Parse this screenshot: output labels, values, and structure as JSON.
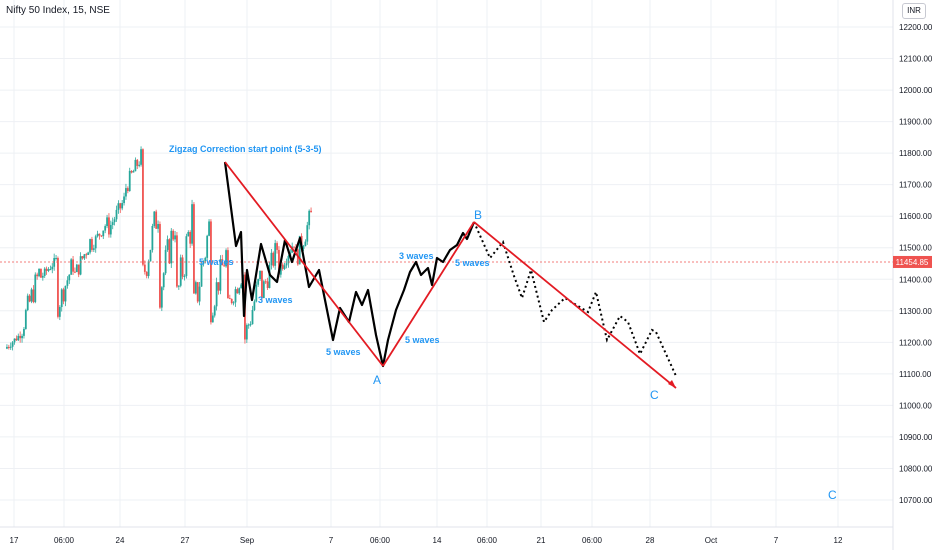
{
  "symbol_label": "Nifty 50 Index, 15, NSE",
  "currency": "INR",
  "colors": {
    "up": "#26a69a",
    "down": "#ef5350",
    "projection": "#e31b23",
    "wave": "#000000",
    "annotation": "#2196f3",
    "price_line": "#ef5350"
  },
  "chart_data": {
    "type": "candlestick",
    "title": "Nifty 50 Index, 15, NSE",
    "y_range": [
      10670,
      12260
    ],
    "y_ticks": [
      12200,
      12100,
      12000,
      11900,
      11800,
      11700,
      11600,
      11500,
      11400,
      11300,
      11200,
      11100,
      11000,
      10900,
      10800,
      10700
    ],
    "last_price": 11454.85,
    "last_price_label": "11454.85",
    "x_ticks": [
      "17",
      "06:00",
      "24",
      "27",
      "Sep",
      "7",
      "06:00",
      "14",
      "06:00",
      "21",
      "06:00",
      "28",
      "Oct",
      "7",
      "12"
    ],
    "candle_range": {
      "start_price": 11180,
      "points": [
        [
          11180,
          11230
        ],
        [
          11250,
          11420
        ],
        [
          11400,
          11460
        ],
        [
          11300,
          11450
        ],
        [
          11400,
          11520
        ],
        [
          11500,
          11580
        ],
        [
          11550,
          11650
        ],
        [
          11680,
          11790
        ],
        [
          11380,
          11620
        ],
        [
          11340,
          11580
        ],
        [
          11300,
          11600
        ],
        [
          11270,
          11560
        ],
        [
          11290,
          11480
        ],
        [
          11300,
          11420
        ],
        [
          11190,
          11400
        ],
        [
          11340,
          11500
        ],
        [
          11420,
          11520
        ],
        [
          11450,
          11600
        ]
      ]
    },
    "wave_path": [
      [
        11790,
        "Aug 31"
      ],
      [
        11330,
        ""
      ],
      [
        11580,
        ""
      ],
      [
        11430,
        ""
      ],
      [
        11560,
        ""
      ],
      [
        11260,
        ""
      ],
      [
        11430,
        ""
      ],
      [
        11180,
        "A"
      ],
      [
        11490,
        ""
      ],
      [
        11430,
        ""
      ],
      [
        11560,
        ""
      ],
      [
        11610,
        "B"
      ]
    ],
    "zigzag_lines": [
      {
        "from": 11790,
        "to": 11180,
        "label": "A"
      },
      {
        "from": 11180,
        "to": 11610,
        "label": "B"
      },
      {
        "from": 11610,
        "to": 11110,
        "label": "C"
      }
    ],
    "annotations": [
      {
        "text": "Zigzag Correction start point (5-3-5)"
      },
      {
        "text": "5 waves"
      },
      {
        "text": "3 waves"
      },
      {
        "text": "5 waves"
      },
      {
        "text": "5 waves"
      },
      {
        "text": "3 waves"
      },
      {
        "text": "5 waves"
      },
      {
        "text": "A"
      },
      {
        "text": "B"
      },
      {
        "text": "C"
      },
      {
        "text": "C"
      }
    ]
  }
}
